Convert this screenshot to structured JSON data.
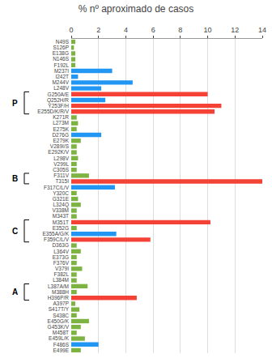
{
  "chart_data": {
    "type": "bar",
    "orientation": "horizontal",
    "title": "% nº aproximado de casos",
    "categories": [
      "N49S",
      "S126P",
      "E138G",
      "N146S",
      "F192L",
      "M237I",
      "I242T",
      "M244V",
      "L248V",
      "G250A/E",
      "Q252H/R",
      "Y253F/H",
      "E255D/K/R/V",
      "K271R",
      "L273M",
      "E275K",
      "D276G",
      "E279K",
      "V289I/S",
      "E292K/V",
      "L298V",
      "V299L",
      "C305S",
      "F311V",
      "T315I",
      "F317C/L/V",
      "Y320C",
      "G321E",
      "L324Q",
      "V338M",
      "M343T",
      "M351T",
      "E352G",
      "E355A/G/K",
      "F359C/L/V",
      "D363G",
      "L364V",
      "E373G",
      "F376V",
      "V379I",
      "F382L",
      "L384M",
      "L387A/M",
      "M388H",
      "H396P/R",
      "A397P",
      "S417T/Y",
      "S438C",
      "E450G/K",
      "G453K/V",
      "M458T",
      "E459L/K",
      "F486S",
      "E499E"
    ],
    "values": [
      0.3,
      0.2,
      0.3,
      0.3,
      0.3,
      3.0,
      0.5,
      4.5,
      2.2,
      10.0,
      2.5,
      11.0,
      10.5,
      0.4,
      0.5,
      0.4,
      2.2,
      0.7,
      0.4,
      0.4,
      0.5,
      0.4,
      0.4,
      1.3,
      14.0,
      3.2,
      0.4,
      0.5,
      0.7,
      0.4,
      0.4,
      10.2,
      0.4,
      3.3,
      5.8,
      0.4,
      0.7,
      0.4,
      0.4,
      0.8,
      0.4,
      0.4,
      1.2,
      0.4,
      4.8,
      0.3,
      0.6,
      0.4,
      1.3,
      0.7,
      0.4,
      1.0,
      2.0,
      0.7
    ],
    "colors": [
      "#7cb342",
      "#7cb342",
      "#7cb342",
      "#7cb342",
      "#7cb342",
      "#2196f3",
      "#2196f3",
      "#2196f3",
      "#2196f3",
      "#f44336",
      "#2196f3",
      "#f44336",
      "#f44336",
      "#7cb342",
      "#7cb342",
      "#7cb342",
      "#2196f3",
      "#7cb342",
      "#7cb342",
      "#7cb342",
      "#7cb342",
      "#7cb342",
      "#7cb342",
      "#7cb342",
      "#f44336",
      "#2196f3",
      "#7cb342",
      "#7cb342",
      "#7cb342",
      "#7cb342",
      "#7cb342",
      "#f44336",
      "#7cb342",
      "#2196f3",
      "#f44336",
      "#7cb342",
      "#7cb342",
      "#7cb342",
      "#7cb342",
      "#7cb342",
      "#7cb342",
      "#7cb342",
      "#7cb342",
      "#7cb342",
      "#f44336",
      "#7cb342",
      "#7cb342",
      "#7cb342",
      "#7cb342",
      "#7cb342",
      "#7cb342",
      "#7cb342",
      "#2196f3",
      "#7cb342"
    ],
    "xlim": [
      0,
      14
    ],
    "xticks": [
      0,
      2,
      4,
      6,
      8,
      10,
      12,
      14
    ],
    "grid": true,
    "annotations": [
      {
        "text": "P",
        "from": "G250A/E",
        "to": "E255D/K/R/V"
      },
      {
        "text": "B",
        "from": "F311V",
        "to": "T315I"
      },
      {
        "text": "C",
        "from": "M351T",
        "to": "F359C/L/V"
      },
      {
        "text": "A",
        "from": "L387A/M",
        "to": "H396P/R"
      }
    ]
  }
}
